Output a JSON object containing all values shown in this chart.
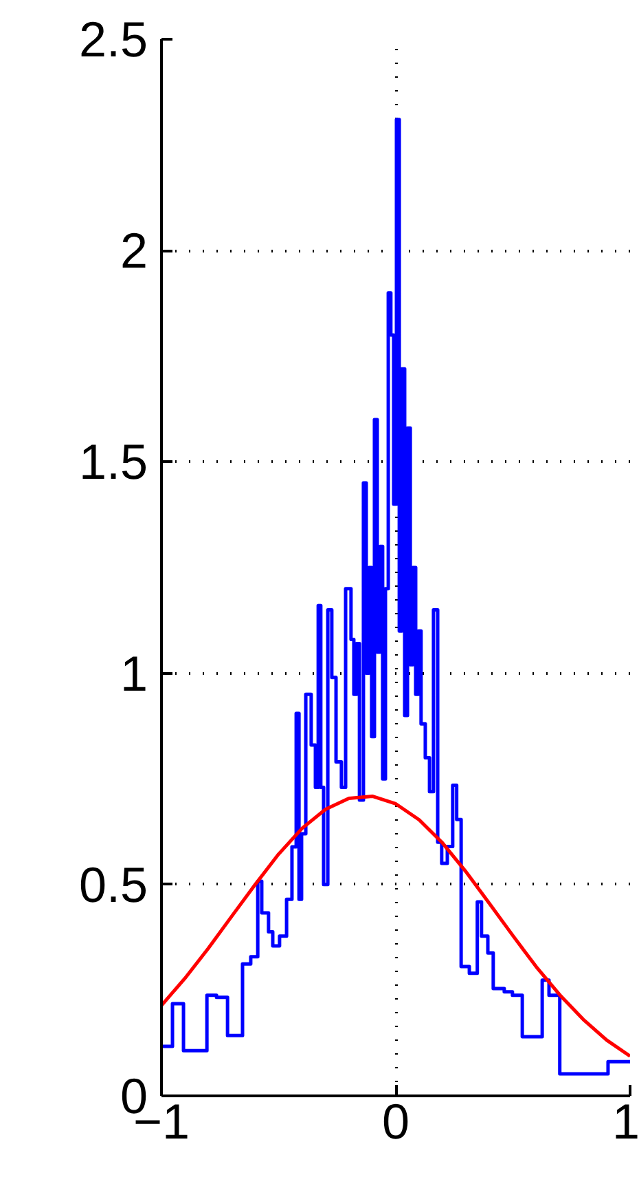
{
  "chart_data": {
    "type": "line",
    "xlim": [
      -1,
      1
    ],
    "ylim": [
      0,
      2.5
    ],
    "xticks": [
      -1,
      0,
      1
    ],
    "yticks": [
      0,
      0.5,
      1,
      1.5,
      2,
      2.5
    ],
    "grid": true,
    "line_style": "solid",
    "marker": "none",
    "series": [
      {
        "type": "step",
        "color": "#0000ff",
        "x": [
          -1,
          -0.953,
          -0.906,
          -0.806,
          -0.765,
          -0.718,
          -0.654,
          -0.619,
          -0.589,
          -0.572,
          -0.543,
          -0.525,
          -0.496,
          -0.466,
          -0.443,
          -0.425,
          -0.413,
          -0.402,
          -0.384,
          -0.361,
          -0.343,
          -0.331,
          -0.32,
          -0.308,
          -0.29,
          -0.273,
          -0.255,
          -0.232,
          -0.214,
          -0.191,
          -0.179,
          -0.167,
          -0.155,
          -0.138,
          -0.126,
          -0.114,
          -0.103,
          -0.091,
          -0.079,
          -0.067,
          -0.056,
          -0.044,
          -0.032,
          -0.021,
          -0.009,
          0.003,
          0.015,
          0.026,
          0.038,
          0.05,
          0.062,
          0.073,
          0.085,
          0.097,
          0.108,
          0.126,
          0.144,
          0.161,
          0.179,
          0.196,
          0.22,
          0.243,
          0.26,
          0.279,
          0.314,
          0.348,
          0.366,
          0.393,
          0.416,
          0.463,
          0.498,
          0.54,
          0.625,
          0.654,
          0.7,
          0.906,
          1
        ],
        "values": [
          0.117,
          0.218,
          0.107,
          0.238,
          0.233,
          0.143,
          0.312,
          0.329,
          0.508,
          0.433,
          0.388,
          0.355,
          0.378,
          0.465,
          0.589,
          0.905,
          0.465,
          0.62,
          0.95,
          0.83,
          0.73,
          1.16,
          0.73,
          0.5,
          1.15,
          0.99,
          0.79,
          0.73,
          1.2,
          1.08,
          0.95,
          1.07,
          0.7,
          1.45,
          1.0,
          1.25,
          0.85,
          1.6,
          1.05,
          1.3,
          0.75,
          1.2,
          1.9,
          1.8,
          1.4,
          2.31,
          1.1,
          1.72,
          0.9,
          1.58,
          1.02,
          1.25,
          0.95,
          1.1,
          0.88,
          0.8,
          0.72,
          1.15,
          0.6,
          0.55,
          0.59,
          0.735,
          0.654,
          0.306,
          0.29,
          0.459,
          0.378,
          0.338,
          0.254,
          0.246,
          0.238,
          0.14,
          0.274,
          0.238,
          0.052,
          0.081,
          0.081
        ]
      },
      {
        "color": "#ff0000",
        "x": [
          -1,
          -0.9,
          -0.8,
          -0.7,
          -0.6,
          -0.5,
          -0.4,
          -0.3,
          -0.2,
          -0.1,
          0,
          0.1,
          0.2,
          0.3,
          0.4,
          0.5,
          0.6,
          0.7,
          0.8,
          0.9,
          1
        ],
        "values": [
          0.214,
          0.278,
          0.349,
          0.425,
          0.5,
          0.572,
          0.633,
          0.678,
          0.704,
          0.709,
          0.691,
          0.653,
          0.598,
          0.53,
          0.455,
          0.379,
          0.305,
          0.239,
          0.181,
          0.132,
          0.094
        ]
      }
    ]
  }
}
